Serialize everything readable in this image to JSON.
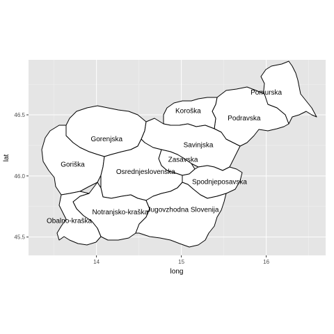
{
  "chart_data": {
    "type": "map",
    "title": "",
    "xlabel": "long",
    "ylabel": "lat",
    "xlim": [
      13.2,
      16.7
    ],
    "ylim": [
      45.35,
      46.95
    ],
    "x_ticks": [
      14,
      15,
      16
    ],
    "x_tick_labels": [
      "14",
      "15",
      "16"
    ],
    "y_ticks": [
      45.5,
      46.0,
      46.5
    ],
    "y_tick_labels": [
      "45.5",
      "46.0",
      "46.5"
    ],
    "grid": true,
    "panel_background": "#e5e5e5",
    "region_fill": "#ffffff",
    "region_stroke": "#000000",
    "regions": [
      {
        "name": "Pomurska",
        "label_long": 16.0,
        "label_lat": 46.68
      },
      {
        "name": "Koroška",
        "label_long": 15.08,
        "label_lat": 46.53
      },
      {
        "name": "Podravska",
        "label_long": 15.74,
        "label_lat": 46.47
      },
      {
        "name": "Gorenjska",
        "label_long": 14.12,
        "label_lat": 46.3
      },
      {
        "name": "Savinjska",
        "label_long": 15.2,
        "label_lat": 46.25
      },
      {
        "name": "Zasavska",
        "label_long": 15.02,
        "label_lat": 46.13
      },
      {
        "name": "Goriška",
        "label_long": 13.72,
        "label_lat": 46.09
      },
      {
        "name": "Osrednjeslovenska",
        "label_long": 14.58,
        "label_lat": 46.03
      },
      {
        "name": "Spodnjeposavska",
        "label_long": 15.45,
        "label_lat": 45.95
      },
      {
        "name": "Notranjsko-kraška",
        "label_long": 14.28,
        "label_lat": 45.7
      },
      {
        "name": "Jugovzhodna Slovenija",
        "label_long": 15.02,
        "label_lat": 45.72
      },
      {
        "name": "Obalno-kraška",
        "label_long": 13.68,
        "label_lat": 45.63
      }
    ]
  }
}
